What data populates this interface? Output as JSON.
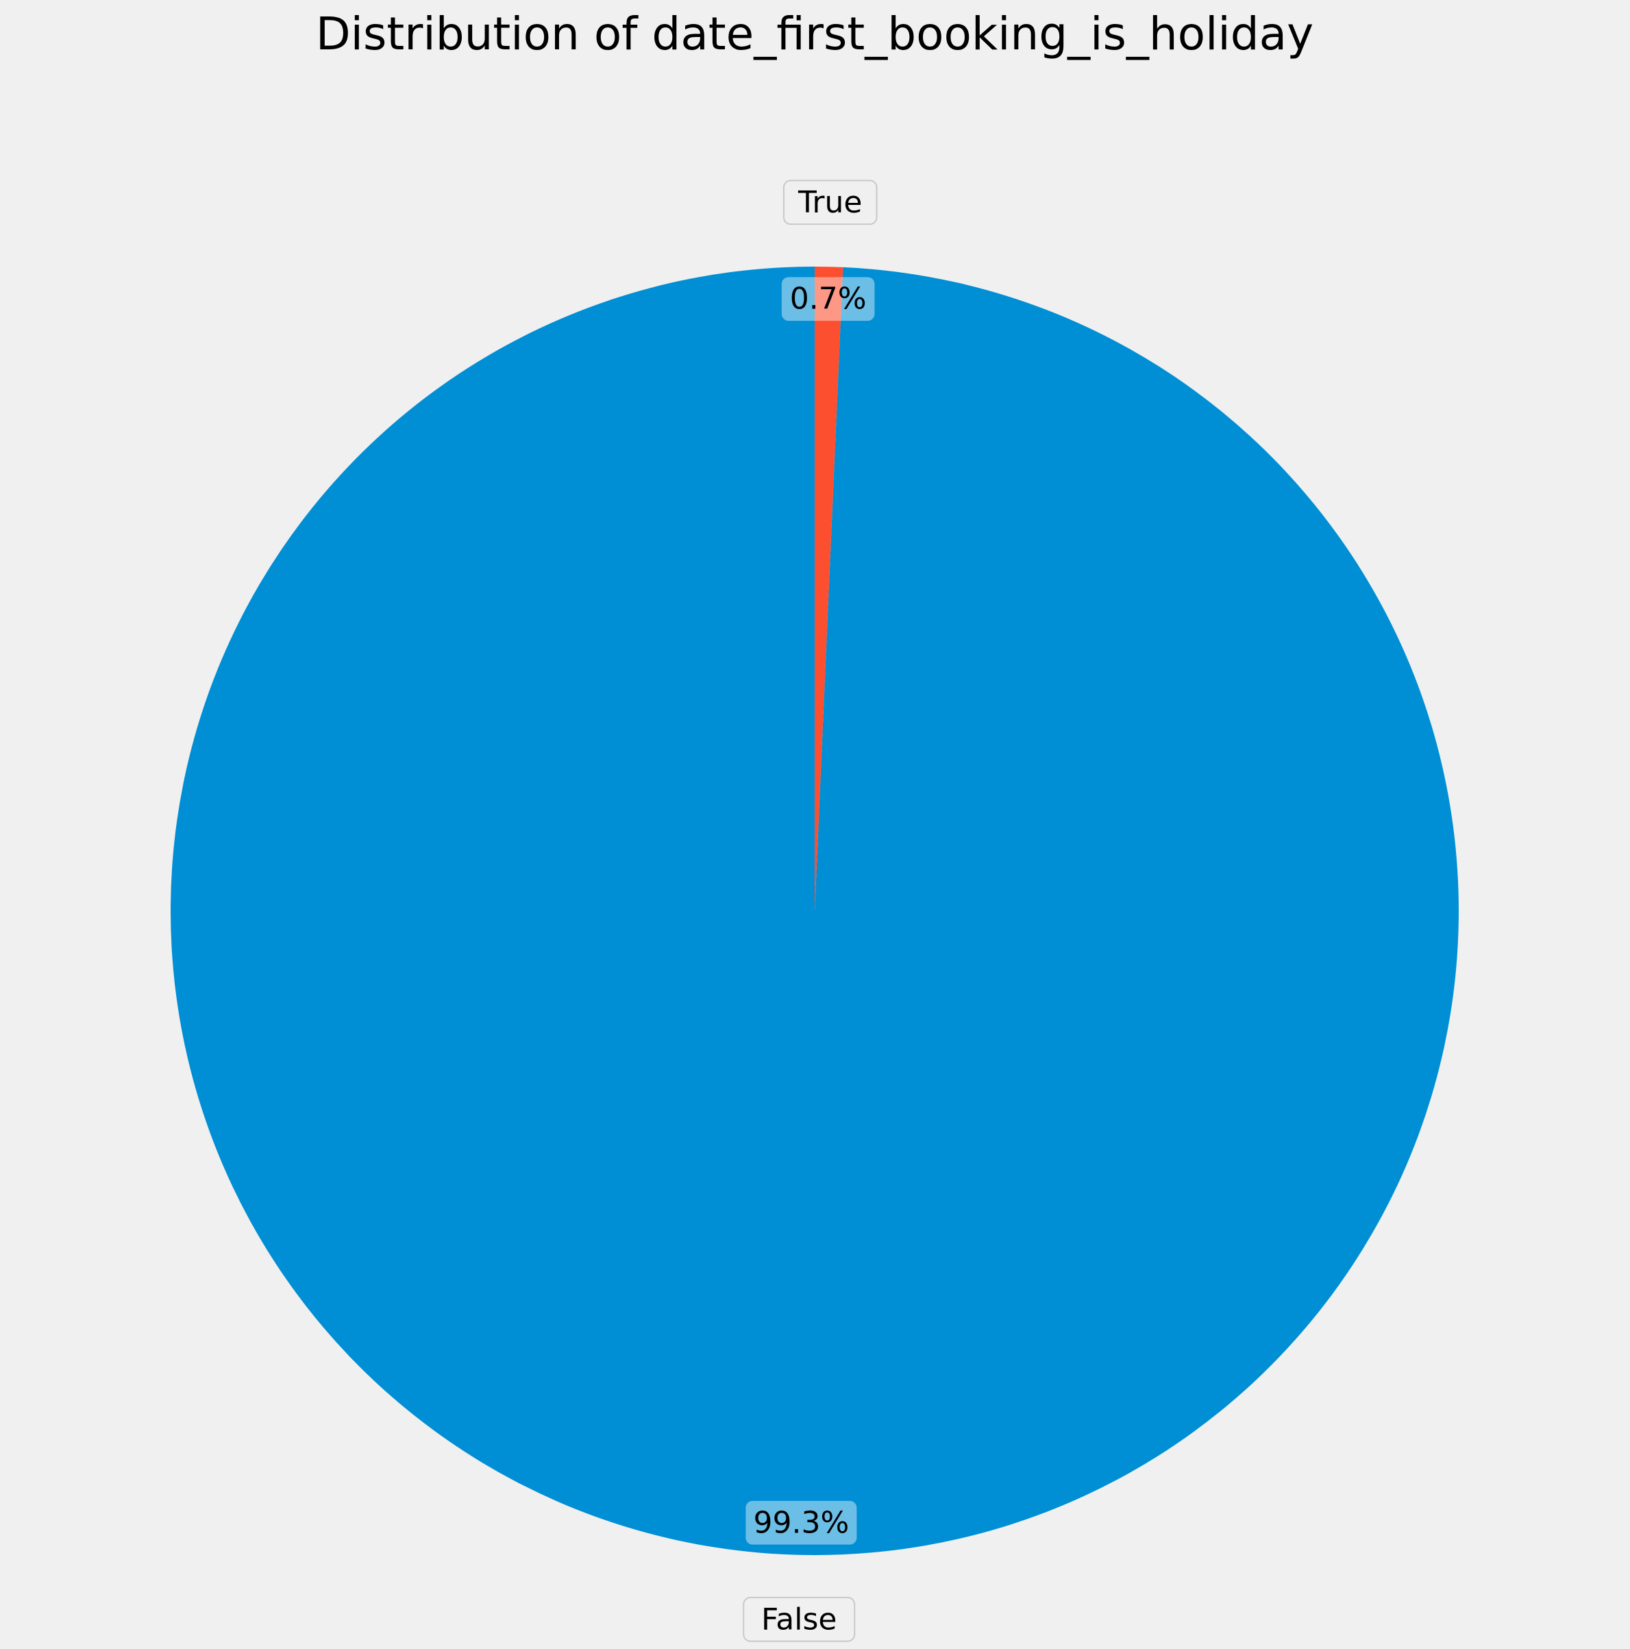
{
  "chart_data": {
    "type": "pie",
    "title": "Distribution of date_first_booking_is_holiday",
    "slices": [
      {
        "label": "False",
        "value": 99.3,
        "pct_label": "99.3%",
        "color": "#008fd5"
      },
      {
        "label": "True",
        "value": 0.7,
        "pct_label": "0.7%",
        "color": "#fc4f30"
      }
    ],
    "start_angle_deg": 90,
    "direction": "counterclockwise",
    "background": "#f0f0f0"
  }
}
